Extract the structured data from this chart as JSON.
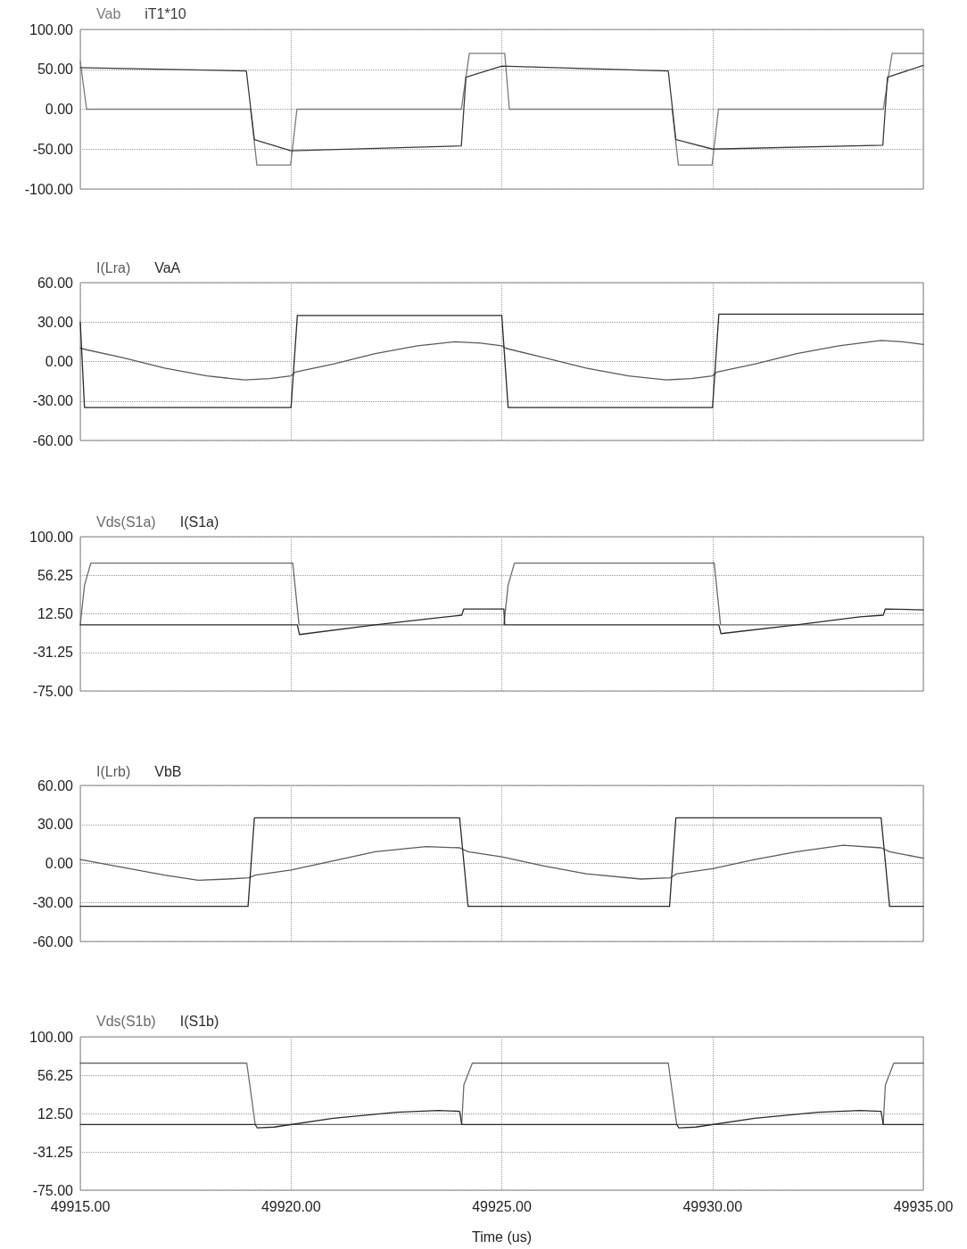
{
  "chart_data": [
    {
      "type": "line",
      "legend": "top left",
      "grid": true,
      "marker": "none",
      "line_style": "solid",
      "tick_labels": "y",
      "xlim": [
        49915,
        49935
      ],
      "xticks": [
        49915,
        49920,
        49925,
        49930,
        49935
      ],
      "ylim": [
        -100,
        100
      ],
      "yticks": [
        {
          "value": -100,
          "label": "-100.00"
        },
        {
          "value": -50,
          "label": "-50.00"
        },
        {
          "value": 0,
          "label": "0.00"
        },
        {
          "value": 50,
          "label": "50.00"
        },
        {
          "value": 100,
          "label": "100.00"
        }
      ],
      "series": [
        {
          "name": "Vab",
          "color": "#7a7a7a",
          "x": [
            49915,
            49915.15,
            49919.04,
            49919.19,
            49919.99,
            49920.14,
            49924.04,
            49924.23,
            49925.07,
            49925.18,
            49929.04,
            49929.19,
            49929.99,
            49930.14,
            49934.05,
            49934.26,
            49935
          ],
          "values": [
            60,
            0,
            0,
            -70,
            -70,
            0,
            0,
            70,
            70,
            0,
            0,
            -70,
            -70,
            0,
            0,
            70,
            70
          ]
        },
        {
          "name": "iT1*10",
          "color": "#3a3a3a",
          "x": [
            49915,
            49918.94,
            49919.13,
            49920,
            49924.04,
            49924.15,
            49925,
            49928.95,
            49929.13,
            49930,
            49934.04,
            49934.15,
            49935
          ],
          "values": [
            52,
            48,
            -38,
            -52,
            -46,
            40,
            54,
            48,
            -38,
            -50,
            -45,
            40,
            55
          ]
        }
      ]
    },
    {
      "type": "line",
      "legend": "top left",
      "grid": true,
      "marker": "none",
      "line_style": "solid",
      "tick_labels": "y",
      "xlim": [
        49915,
        49935
      ],
      "xticks": [
        49915,
        49920,
        49925,
        49930,
        49935
      ],
      "ylim": [
        -60,
        60
      ],
      "yticks": [
        {
          "value": -60,
          "label": "-60.00"
        },
        {
          "value": -30,
          "label": "-30.00"
        },
        {
          "value": 0,
          "label": "0.00"
        },
        {
          "value": 30,
          "label": "30.00"
        },
        {
          "value": 60,
          "label": "60.00"
        }
      ],
      "series": [
        {
          "name": "I(Lra)",
          "color": "#5a5a5a",
          "x": [
            49915,
            49916,
            49917,
            49918,
            49918.9,
            49919.5,
            49920,
            49920.1,
            49921,
            49922,
            49923,
            49923.9,
            49924.5,
            49925,
            49925.1,
            49926,
            49927,
            49928,
            49928.9,
            49929.5,
            49930,
            49930.1,
            49931,
            49932,
            49933,
            49934,
            49934.5,
            49935
          ],
          "values": [
            10,
            3,
            -5,
            -11,
            -14,
            -13,
            -11,
            -8,
            -2,
            6,
            12,
            15,
            14,
            12,
            10,
            3,
            -5,
            -11,
            -14,
            -13,
            -11,
            -8,
            -2,
            6,
            12,
            16,
            15,
            13
          ]
        },
        {
          "name": "VaA",
          "color": "#2a2a2a",
          "x": [
            49915,
            49915.1,
            49920,
            49920.15,
            49925,
            49925.15,
            49930,
            49930.15,
            49935
          ],
          "values": [
            30,
            -35,
            -35,
            35,
            35,
            -35,
            -35,
            36,
            36
          ]
        }
      ]
    },
    {
      "type": "line",
      "legend": "top left",
      "grid": true,
      "marker": "none",
      "line_style": "solid",
      "tick_labels": "y",
      "xlim": [
        49915,
        49935
      ],
      "xticks": [
        49915,
        49920,
        49925,
        49930,
        49935
      ],
      "ylim": [
        -75,
        100
      ],
      "yticks": [
        {
          "value": -75,
          "label": "-75.00"
        },
        {
          "value": -31.25,
          "label": "-31.25"
        },
        {
          "value": 12.5,
          "label": "12.50"
        },
        {
          "value": 56.25,
          "label": "56.25"
        },
        {
          "value": 100,
          "label": "100.00"
        }
      ],
      "series": [
        {
          "name": "Vds(S1a)",
          "color": "#6a6a6a",
          "x": [
            49915,
            49915.1,
            49915.25,
            49920.04,
            49920.19,
            49925.05,
            49925.15,
            49925.3,
            49930.04,
            49930.19,
            49935
          ],
          "values": [
            0,
            45,
            70,
            70,
            0,
            0,
            45,
            70,
            70,
            0,
            0
          ]
        },
        {
          "name": "I(S1a)",
          "color": "#2a2a2a",
          "x": [
            49915,
            49920.15,
            49920.2,
            49922,
            49923.5,
            49924.05,
            49924.1,
            49925.05,
            49925.07,
            49930.15,
            49930.2,
            49932,
            49933.5,
            49934.05,
            49934.1,
            49935
          ],
          "values": [
            0,
            0,
            -11,
            0,
            8,
            11,
            18,
            18,
            0,
            0,
            -10,
            0,
            9,
            11,
            18,
            17
          ]
        }
      ]
    },
    {
      "type": "line",
      "legend": "top left",
      "grid": true,
      "marker": "none",
      "line_style": "solid",
      "tick_labels": "y",
      "xlim": [
        49915,
        49935
      ],
      "xticks": [
        49915,
        49920,
        49925,
        49930,
        49935
      ],
      "ylim": [
        -60,
        60
      ],
      "yticks": [
        {
          "value": -60,
          "label": "-60.00"
        },
        {
          "value": -30,
          "label": "-30.00"
        },
        {
          "value": 0,
          "label": "0.00"
        },
        {
          "value": 30,
          "label": "30.00"
        },
        {
          "value": 60,
          "label": "60.00"
        }
      ],
      "series": [
        {
          "name": "I(Lrb)",
          "color": "#5a5a5a",
          "x": [
            49915,
            49916,
            49917,
            49917.8,
            49918.5,
            49919,
            49919.15,
            49920,
            49921,
            49922,
            49923.2,
            49924,
            49924.2,
            49925,
            49926,
            49927,
            49928.3,
            49929,
            49929.15,
            49930,
            49931,
            49932,
            49933.1,
            49934,
            49934.2,
            49935
          ],
          "values": [
            3,
            -3,
            -9,
            -13,
            -12,
            -11,
            -9,
            -5,
            2,
            9,
            13,
            12,
            9,
            5,
            -2,
            -8,
            -12,
            -11,
            -8,
            -4,
            3,
            9,
            14,
            12,
            9,
            4
          ]
        },
        {
          "name": "VbB",
          "color": "#2a2a2a",
          "x": [
            49915,
            49918.98,
            49919.13,
            49924,
            49924.2,
            49928.98,
            49929.13,
            49934,
            49934.2,
            49935
          ],
          "values": [
            -33,
            -33,
            35,
            35,
            -33,
            -33,
            35,
            35,
            -33,
            -33
          ]
        }
      ]
    },
    {
      "type": "line",
      "legend": "top left",
      "grid": true,
      "marker": "none",
      "line_style": "solid",
      "xlabel": "Time (us)",
      "xlim": [
        49915,
        49935
      ],
      "xticks": [
        {
          "value": 49915,
          "label": "49915.00"
        },
        {
          "value": 49920,
          "label": "49920.00"
        },
        {
          "value": 49925,
          "label": "49925.00"
        },
        {
          "value": 49930,
          "label": "49930.00"
        },
        {
          "value": 49935,
          "label": "49935.00"
        }
      ],
      "ylim": [
        -75,
        100
      ],
      "yticks": [
        {
          "value": -75,
          "label": "-75.00"
        },
        {
          "value": -31.25,
          "label": "-31.25"
        },
        {
          "value": 12.5,
          "label": "12.50"
        },
        {
          "value": 56.25,
          "label": "56.25"
        },
        {
          "value": 100,
          "label": "100.00"
        }
      ],
      "series": [
        {
          "name": "Vds(S1b)",
          "color": "#6a6a6a",
          "x": [
            49915,
            49918.95,
            49919.15,
            49924.05,
            49924.1,
            49924.3,
            49928.95,
            49929.15,
            49934.05,
            49934.1,
            49934.3,
            49935
          ],
          "values": [
            70,
            70,
            0,
            0,
            45,
            70,
            70,
            0,
            0,
            45,
            70,
            70
          ]
        },
        {
          "name": "I(S1b)",
          "color": "#2a2a2a",
          "x": [
            49915,
            49919.15,
            49919.2,
            49919.6,
            49921,
            49922.5,
            49923.5,
            49924,
            49924.05,
            49929.15,
            49929.2,
            49929.6,
            49931,
            49932.5,
            49933.5,
            49934,
            49934.05,
            49935
          ],
          "values": [
            0,
            0,
            -4,
            -3,
            7,
            14,
            16,
            15,
            0,
            0,
            -4,
            -3,
            7,
            14,
            16,
            15,
            0,
            0
          ]
        }
      ]
    }
  ]
}
